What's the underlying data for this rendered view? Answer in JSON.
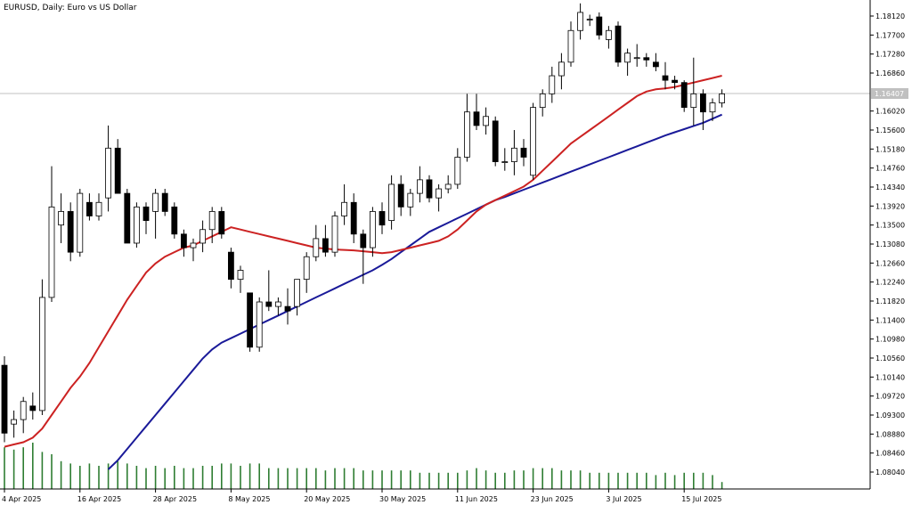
{
  "chart_data": {
    "type": "candlestick",
    "title": "EURUSD, Daily:  Euro vs US Dollar",
    "symbol": "EURUSD",
    "timeframe": "Daily",
    "description": "Euro vs US Dollar",
    "current_price_label": "1.16407",
    "current_price": 1.16407,
    "ylim": [
      1.079,
      1.184
    ],
    "y_ticks": [
      "1.18120",
      "1.17700",
      "1.17280",
      "1.16860",
      "1.16020",
      "1.15600",
      "1.15180",
      "1.14760",
      "1.14340",
      "1.13920",
      "1.13500",
      "1.13080",
      "1.12660",
      "1.12240",
      "1.11820",
      "1.11400",
      "1.10980",
      "1.10560",
      "1.10140",
      "1.09720",
      "1.09300",
      "1.08880",
      "1.08460",
      "1.08040"
    ],
    "x_ticks": [
      {
        "label": "4 Apr 2025",
        "index": 0
      },
      {
        "label": "16 Apr 2025",
        "index": 8
      },
      {
        "label": "28 Apr 2025",
        "index": 16
      },
      {
        "label": "8 May 2025",
        "index": 24
      },
      {
        "label": "20 May 2025",
        "index": 32
      },
      {
        "label": "30 May 2025",
        "index": 40
      },
      {
        "label": "11 Jun 2025",
        "index": 48
      },
      {
        "label": "23 Jun 2025",
        "index": 56
      },
      {
        "label": "3 Jul 2025",
        "index": 64
      },
      {
        "label": "15 Jul 2025",
        "index": 72
      }
    ],
    "colors": {
      "bull_body": "#ffffff",
      "bear_body": "#000000",
      "wick": "#000000",
      "ma_fast": "#cc2222",
      "ma_slow": "#1a1a99",
      "volume": "#2e7d32",
      "price_line": "#c0c0c0",
      "price_tag_bg": "#c0c0c0",
      "grid_axis": "#000000"
    },
    "candles": [
      {
        "o": 1.104,
        "h": 1.106,
        "l": 1.087,
        "c": 1.089
      },
      {
        "o": 1.091,
        "h": 1.094,
        "l": 1.088,
        "c": 1.092
      },
      {
        "o": 1.092,
        "h": 1.097,
        "l": 1.089,
        "c": 1.096
      },
      {
        "o": 1.095,
        "h": 1.098,
        "l": 1.092,
        "c": 1.094
      },
      {
        "o": 1.094,
        "h": 1.123,
        "l": 1.093,
        "c": 1.119
      },
      {
        "o": 1.119,
        "h": 1.148,
        "l": 1.118,
        "c": 1.139
      },
      {
        "o": 1.135,
        "h": 1.142,
        "l": 1.131,
        "c": 1.138
      },
      {
        "o": 1.138,
        "h": 1.14,
        "l": 1.127,
        "c": 1.129
      },
      {
        "o": 1.129,
        "h": 1.143,
        "l": 1.128,
        "c": 1.142
      },
      {
        "o": 1.14,
        "h": 1.142,
        "l": 1.136,
        "c": 1.137
      },
      {
        "o": 1.137,
        "h": 1.142,
        "l": 1.136,
        "c": 1.14
      },
      {
        "o": 1.141,
        "h": 1.157,
        "l": 1.138,
        "c": 1.152
      },
      {
        "o": 1.152,
        "h": 1.154,
        "l": 1.142,
        "c": 1.142
      },
      {
        "o": 1.142,
        "h": 1.143,
        "l": 1.131,
        "c": 1.131
      },
      {
        "o": 1.131,
        "h": 1.14,
        "l": 1.13,
        "c": 1.139
      },
      {
        "o": 1.139,
        "h": 1.14,
        "l": 1.133,
        "c": 1.136
      },
      {
        "o": 1.138,
        "h": 1.143,
        "l": 1.132,
        "c": 1.142
      },
      {
        "o": 1.142,
        "h": 1.143,
        "l": 1.137,
        "c": 1.138
      },
      {
        "o": 1.139,
        "h": 1.14,
        "l": 1.132,
        "c": 1.133
      },
      {
        "o": 1.133,
        "h": 1.134,
        "l": 1.128,
        "c": 1.13
      },
      {
        "o": 1.13,
        "h": 1.132,
        "l": 1.127,
        "c": 1.131
      },
      {
        "o": 1.131,
        "h": 1.136,
        "l": 1.129,
        "c": 1.134
      },
      {
        "o": 1.134,
        "h": 1.139,
        "l": 1.131,
        "c": 1.138
      },
      {
        "o": 1.138,
        "h": 1.139,
        "l": 1.132,
        "c": 1.133
      },
      {
        "o": 1.129,
        "h": 1.13,
        "l": 1.121,
        "c": 1.123
      },
      {
        "o": 1.123,
        "h": 1.126,
        "l": 1.12,
        "c": 1.125
      },
      {
        "o": 1.12,
        "h": 1.12,
        "l": 1.107,
        "c": 1.108
      },
      {
        "o": 1.108,
        "h": 1.119,
        "l": 1.107,
        "c": 1.118
      },
      {
        "o": 1.118,
        "h": 1.125,
        "l": 1.116,
        "c": 1.117
      },
      {
        "o": 1.117,
        "h": 1.119,
        "l": 1.115,
        "c": 1.118
      },
      {
        "o": 1.117,
        "h": 1.121,
        "l": 1.113,
        "c": 1.116
      },
      {
        "o": 1.117,
        "h": 1.123,
        "l": 1.115,
        "c": 1.123
      },
      {
        "o": 1.123,
        "h": 1.129,
        "l": 1.12,
        "c": 1.128
      },
      {
        "o": 1.128,
        "h": 1.135,
        "l": 1.127,
        "c": 1.132
      },
      {
        "o": 1.132,
        "h": 1.135,
        "l": 1.128,
        "c": 1.129
      },
      {
        "o": 1.129,
        "h": 1.138,
        "l": 1.128,
        "c": 1.137
      },
      {
        "o": 1.137,
        "h": 1.144,
        "l": 1.135,
        "c": 1.14
      },
      {
        "o": 1.14,
        "h": 1.142,
        "l": 1.131,
        "c": 1.133
      },
      {
        "o": 1.133,
        "h": 1.134,
        "l": 1.122,
        "c": 1.13
      },
      {
        "o": 1.13,
        "h": 1.139,
        "l": 1.128,
        "c": 1.138
      },
      {
        "o": 1.138,
        "h": 1.14,
        "l": 1.133,
        "c": 1.135
      },
      {
        "o": 1.136,
        "h": 1.146,
        "l": 1.134,
        "c": 1.144
      },
      {
        "o": 1.144,
        "h": 1.146,
        "l": 1.137,
        "c": 1.139
      },
      {
        "o": 1.139,
        "h": 1.143,
        "l": 1.137,
        "c": 1.142
      },
      {
        "o": 1.142,
        "h": 1.148,
        "l": 1.14,
        "c": 1.145
      },
      {
        "o": 1.145,
        "h": 1.146,
        "l": 1.14,
        "c": 1.141
      },
      {
        "o": 1.141,
        "h": 1.144,
        "l": 1.138,
        "c": 1.143
      },
      {
        "o": 1.143,
        "h": 1.146,
        "l": 1.142,
        "c": 1.144
      },
      {
        "o": 1.144,
        "h": 1.152,
        "l": 1.143,
        "c": 1.15
      },
      {
        "o": 1.15,
        "h": 1.164,
        "l": 1.149,
        "c": 1.16
      },
      {
        "o": 1.16,
        "h": 1.164,
        "l": 1.156,
        "c": 1.157
      },
      {
        "o": 1.157,
        "h": 1.161,
        "l": 1.155,
        "c": 1.159
      },
      {
        "o": 1.158,
        "h": 1.159,
        "l": 1.148,
        "c": 1.149
      },
      {
        "o": 1.149,
        "h": 1.152,
        "l": 1.147,
        "c": 1.149
      },
      {
        "o": 1.149,
        "h": 1.156,
        "l": 1.146,
        "c": 1.152
      },
      {
        "o": 1.152,
        "h": 1.154,
        "l": 1.148,
        "c": 1.15
      },
      {
        "o": 1.146,
        "h": 1.162,
        "l": 1.145,
        "c": 1.161
      },
      {
        "o": 1.161,
        "h": 1.165,
        "l": 1.159,
        "c": 1.164
      },
      {
        "o": 1.164,
        "h": 1.17,
        "l": 1.162,
        "c": 1.168
      },
      {
        "o": 1.168,
        "h": 1.173,
        "l": 1.165,
        "c": 1.171
      },
      {
        "o": 1.171,
        "h": 1.18,
        "l": 1.17,
        "c": 1.178
      },
      {
        "o": 1.178,
        "h": 1.184,
        "l": 1.176,
        "c": 1.182
      },
      {
        "o": 1.1805,
        "h": 1.1815,
        "l": 1.179,
        "c": 1.1805
      },
      {
        "o": 1.181,
        "h": 1.182,
        "l": 1.176,
        "c": 1.177
      },
      {
        "o": 1.176,
        "h": 1.179,
        "l": 1.174,
        "c": 1.178
      },
      {
        "o": 1.179,
        "h": 1.18,
        "l": 1.17,
        "c": 1.171
      },
      {
        "o": 1.171,
        "h": 1.174,
        "l": 1.168,
        "c": 1.173
      },
      {
        "o": 1.172,
        "h": 1.175,
        "l": 1.17,
        "c": 1.172
      },
      {
        "o": 1.172,
        "h": 1.173,
        "l": 1.17,
        "c": 1.1715
      },
      {
        "o": 1.171,
        "h": 1.173,
        "l": 1.169,
        "c": 1.17
      },
      {
        "o": 1.168,
        "h": 1.171,
        "l": 1.165,
        "c": 1.167
      },
      {
        "o": 1.167,
        "h": 1.168,
        "l": 1.165,
        "c": 1.1665
      },
      {
        "o": 1.1665,
        "h": 1.167,
        "l": 1.16,
        "c": 1.161
      },
      {
        "o": 1.161,
        "h": 1.172,
        "l": 1.157,
        "c": 1.164
      },
      {
        "o": 1.164,
        "h": 1.165,
        "l": 1.156,
        "c": 1.16
      },
      {
        "o": 1.16,
        "h": 1.163,
        "l": 1.158,
        "c": 1.162
      },
      {
        "o": 1.162,
        "h": 1.165,
        "l": 1.161,
        "c": 1.164
      }
    ],
    "ma_fast": [
      1.086,
      1.0865,
      1.087,
      1.088,
      1.09,
      1.093,
      1.096,
      1.099,
      1.1015,
      1.1045,
      1.108,
      1.1115,
      1.115,
      1.1185,
      1.1215,
      1.1245,
      1.1265,
      1.128,
      1.129,
      1.13,
      1.1305,
      1.1315,
      1.1325,
      1.1335,
      1.1345,
      1.134,
      1.1335,
      1.133,
      1.1325,
      1.132,
      1.1315,
      1.131,
      1.1305,
      1.13,
      1.1298,
      1.1296,
      1.1295,
      1.1294,
      1.1292,
      1.129,
      1.1288,
      1.129,
      1.1295,
      1.13,
      1.1305,
      1.131,
      1.1315,
      1.1325,
      1.134,
      1.136,
      1.138,
      1.1395,
      1.1405,
      1.1415,
      1.1425,
      1.1435,
      1.145,
      1.147,
      1.149,
      1.151,
      1.153,
      1.1545,
      1.156,
      1.1575,
      1.159,
      1.1605,
      1.162,
      1.1635,
      1.1645,
      1.165,
      1.1652,
      1.1655,
      1.166,
      1.1665,
      1.167,
      1.1675,
      1.168
    ],
    "ma_slow": [
      null,
      null,
      null,
      null,
      null,
      null,
      null,
      null,
      null,
      null,
      null,
      1.081,
      1.083,
      1.0855,
      1.088,
      1.0905,
      1.093,
      1.0955,
      1.098,
      1.1005,
      1.103,
      1.1055,
      1.1075,
      1.109,
      1.11,
      1.111,
      1.112,
      1.113,
      1.114,
      1.115,
      1.116,
      1.117,
      1.118,
      1.119,
      1.12,
      1.121,
      1.122,
      1.123,
      1.124,
      1.125,
      1.1262,
      1.1275,
      1.129,
      1.1305,
      1.132,
      1.1335,
      1.1345,
      1.1355,
      1.1365,
      1.1375,
      1.1385,
      1.1395,
      1.1405,
      1.1412,
      1.142,
      1.1428,
      1.1436,
      1.1444,
      1.1452,
      1.146,
      1.1468,
      1.1476,
      1.1484,
      1.1492,
      1.15,
      1.1508,
      1.1516,
      1.1524,
      1.1532,
      1.154,
      1.1548,
      1.1555,
      1.1562,
      1.1569,
      1.1576,
      1.1585,
      1.1594
    ],
    "volume": [
      0.9,
      0.85,
      0.9,
      1.0,
      0.8,
      0.75,
      0.6,
      0.55,
      0.5,
      0.55,
      0.5,
      0.55,
      0.6,
      0.55,
      0.5,
      0.45,
      0.5,
      0.45,
      0.5,
      0.45,
      0.45,
      0.5,
      0.5,
      0.55,
      0.55,
      0.5,
      0.55,
      0.55,
      0.45,
      0.45,
      0.45,
      0.45,
      0.45,
      0.45,
      0.4,
      0.45,
      0.45,
      0.45,
      0.4,
      0.4,
      0.4,
      0.4,
      0.4,
      0.4,
      0.35,
      0.35,
      0.35,
      0.35,
      0.35,
      0.4,
      0.45,
      0.4,
      0.35,
      0.35,
      0.4,
      0.4,
      0.45,
      0.45,
      0.45,
      0.4,
      0.4,
      0.4,
      0.35,
      0.35,
      0.35,
      0.35,
      0.35,
      0.35,
      0.35,
      0.3,
      0.35,
      0.3,
      0.35,
      0.35,
      0.35,
      0.3,
      0.15
    ]
  }
}
